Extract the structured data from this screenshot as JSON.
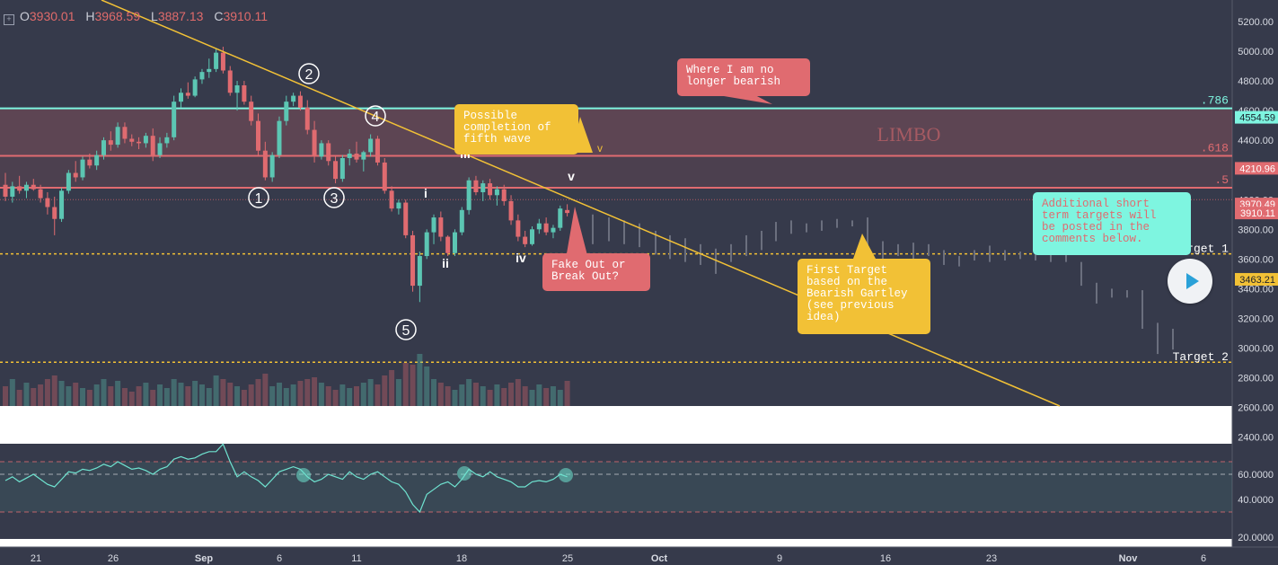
{
  "ohlc": {
    "o_label": "O",
    "o": "3930.01",
    "h_label": "H",
    "h": "3968.59",
    "l_label": "L",
    "l": "3887.13",
    "c_label": "C",
    "c": "3910.11"
  },
  "price_axis": {
    "ticks": [
      "5200.00",
      "5000.00",
      "4800.00",
      "4600.00",
      "4400.00",
      "4200.00",
      "4000.00",
      "3800.00",
      "3600.00",
      "3400.00",
      "3200.00",
      "3000.00",
      "2800.00",
      "2600.00",
      "2400.00"
    ],
    "tick_values": [
      5200,
      5000,
      4800,
      4600,
      4400,
      4200,
      4000,
      3800,
      3600,
      3400,
      3200,
      3000,
      2800,
      2600,
      2400
    ],
    "badges": [
      {
        "text": "4554.59",
        "value": 4554.59,
        "bg": "#7ef5e0",
        "fg": "#1b1f2b"
      },
      {
        "text": "4210.96",
        "value": 4210.96,
        "bg": "#e06b70",
        "fg": "#ffffff"
      },
      {
        "text": "3970.49",
        "value": 3970.49,
        "bg": "#e06b70",
        "fg": "#ffffff"
      },
      {
        "text": "3910.11",
        "value": 3910.11,
        "bg": "#e06b70",
        "fg": "#ffffff"
      },
      {
        "text": "3463.21",
        "value": 3463.21,
        "bg": "#f2c136",
        "fg": "#1b1f2b"
      }
    ]
  },
  "rsi_axis": {
    "ticks": [
      "60.0000",
      "40.0000",
      "20.0000"
    ],
    "tick_values": [
      60,
      40,
      20
    ]
  },
  "time_axis": {
    "labels": [
      "21",
      "26",
      "Sep",
      "6",
      "11",
      "18",
      "25",
      "Oct",
      "9",
      "16",
      "23",
      "Nov",
      "6"
    ]
  },
  "levels": [
    {
      "label": ".786",
      "value": 4615,
      "color": "#7ef5e0"
    },
    {
      "label": ".618",
      "value": 4295,
      "color": "#e06b70"
    },
    {
      "label": ".5",
      "value": 4080,
      "color": "#e06b70"
    }
  ],
  "zone_label": "LIMBO",
  "targets": [
    {
      "label": "Target 1",
      "value": 3635,
      "color": "#f2c136"
    },
    {
      "label": "Target 2",
      "value": 2905,
      "color": "#f2c136"
    }
  ],
  "wave_labels": {
    "circled": [
      "1",
      "2",
      "3",
      "4",
      "5"
    ],
    "minor": [
      "i",
      "ii",
      "iii",
      "iv",
      "v"
    ],
    "small_v": "v"
  },
  "notes": {
    "bearish": "Where I am no\nlonger bearish",
    "fifth": "Possible\ncompletion of\nfifth wave",
    "fake": "Fake Out or\nBreak Out?",
    "first_target": "First Target\nbased on the\nBearish Gartley\n(see previous\nidea)",
    "additional": "Additional short\nterm targets will\nbe posted in the\ncomments below."
  },
  "colors": {
    "bg": "#363a4b",
    "up": "#5cc6b3",
    "down": "#e06b70",
    "trend": "#f2c136",
    "rsi": "#6fe3d0"
  },
  "chart_data": {
    "type": "candlestick",
    "x_labels": [
      "21",
      "26",
      "Sep",
      "6",
      "11",
      "18",
      "25",
      "Oct",
      "9",
      "16",
      "23",
      "Nov",
      "6"
    ],
    "ylim": [
      2350,
      5250
    ],
    "last": {
      "open": 3930.01,
      "high": 3968.59,
      "low": 3887.13,
      "close": 3910.11
    },
    "candles": [
      [
        4100,
        4180,
        3990,
        4020
      ],
      [
        4020,
        4120,
        3980,
        4090
      ],
      [
        4090,
        4160,
        4040,
        4060
      ],
      [
        4060,
        4120,
        4010,
        4100
      ],
      [
        4100,
        4140,
        4060,
        4070
      ],
      [
        4070,
        4100,
        3980,
        4010
      ],
      [
        4010,
        4050,
        3900,
        3950
      ],
      [
        3950,
        4020,
        3760,
        3870
      ],
      [
        3870,
        4080,
        3850,
        4060
      ],
      [
        4060,
        4200,
        4040,
        4180
      ],
      [
        4180,
        4260,
        4120,
        4150
      ],
      [
        4150,
        4290,
        4130,
        4270
      ],
      [
        4270,
        4310,
        4210,
        4230
      ],
      [
        4230,
        4330,
        4200,
        4300
      ],
      [
        4300,
        4420,
        4270,
        4400
      ],
      [
        4400,
        4460,
        4330,
        4370
      ],
      [
        4370,
        4520,
        4350,
        4490
      ],
      [
        4490,
        4520,
        4380,
        4410
      ],
      [
        4410,
        4440,
        4360,
        4390
      ],
      [
        4390,
        4420,
        4340,
        4380
      ],
      [
        4380,
        4450,
        4350,
        4430
      ],
      [
        4430,
        4480,
        4260,
        4300
      ],
      [
        4300,
        4420,
        4280,
        4380
      ],
      [
        4380,
        4450,
        4350,
        4420
      ],
      [
        4420,
        4700,
        4400,
        4660
      ],
      [
        4660,
        4750,
        4620,
        4720
      ],
      [
        4720,
        4790,
        4680,
        4700
      ],
      [
        4700,
        4830,
        4690,
        4810
      ],
      [
        4810,
        4880,
        4780,
        4860
      ],
      [
        4860,
        4950,
        4820,
        4880
      ],
      [
        4880,
        5020,
        4860,
        4990
      ],
      [
        4990,
        5030,
        4850,
        4870
      ],
      [
        4870,
        4900,
        4700,
        4720
      ],
      [
        4720,
        4800,
        4600,
        4770
      ],
      [
        4770,
        4800,
        4640,
        4660
      ],
      [
        4660,
        4700,
        4500,
        4530
      ],
      [
        4530,
        4580,
        4300,
        4330
      ],
      [
        4330,
        4390,
        4130,
        4150
      ],
      [
        4150,
        4320,
        4120,
        4300
      ],
      [
        4300,
        4560,
        4280,
        4530
      ],
      [
        4530,
        4700,
        4500,
        4660
      ],
      [
        4660,
        4720,
        4630,
        4700
      ],
      [
        4700,
        4730,
        4600,
        4620
      ],
      [
        4620,
        4670,
        4440,
        4470
      ],
      [
        4470,
        4530,
        4250,
        4290
      ],
      [
        4290,
        4400,
        4270,
        4380
      ],
      [
        4380,
        4400,
        4230,
        4260
      ],
      [
        4260,
        4290,
        4110,
        4140
      ],
      [
        4140,
        4300,
        4120,
        4280
      ],
      [
        4280,
        4340,
        4230,
        4310
      ],
      [
        4310,
        4390,
        4250,
        4270
      ],
      [
        4270,
        4330,
        4190,
        4320
      ],
      [
        4320,
        4440,
        4290,
        4410
      ],
      [
        4410,
        4430,
        4230,
        4250
      ],
      [
        4250,
        4280,
        4040,
        4060
      ],
      [
        4060,
        4090,
        3920,
        3940
      ],
      [
        3940,
        4000,
        3900,
        3980
      ],
      [
        3980,
        4000,
        3740,
        3760
      ],
      [
        3760,
        3790,
        3380,
        3420
      ],
      [
        3420,
        3650,
        3310,
        3620
      ],
      [
        3620,
        3800,
        3600,
        3780
      ],
      [
        3780,
        3900,
        3700,
        3880
      ],
      [
        3880,
        3920,
        3720,
        3750
      ],
      [
        3750,
        3760,
        3620,
        3640
      ],
      [
        3640,
        3800,
        3620,
        3780
      ],
      [
        3780,
        3950,
        3760,
        3930
      ],
      [
        3930,
        4150,
        3900,
        4130
      ],
      [
        4130,
        4160,
        4030,
        4050
      ],
      [
        4050,
        4130,
        3990,
        4110
      ],
      [
        4110,
        4140,
        4000,
        4030
      ],
      [
        4030,
        4090,
        3960,
        4070
      ],
      [
        4070,
        4100,
        3960,
        3990
      ],
      [
        3990,
        4030,
        3830,
        3860
      ],
      [
        3860,
        3900,
        3720,
        3750
      ],
      [
        3750,
        3790,
        3680,
        3700
      ],
      [
        3700,
        3820,
        3690,
        3800
      ],
      [
        3800,
        3870,
        3770,
        3840
      ],
      [
        3840,
        3880,
        3760,
        3780
      ],
      [
        3780,
        3830,
        3740,
        3810
      ],
      [
        3810,
        3960,
        3790,
        3940
      ],
      [
        3930,
        3969,
        3887,
        3910
      ]
    ]
  }
}
